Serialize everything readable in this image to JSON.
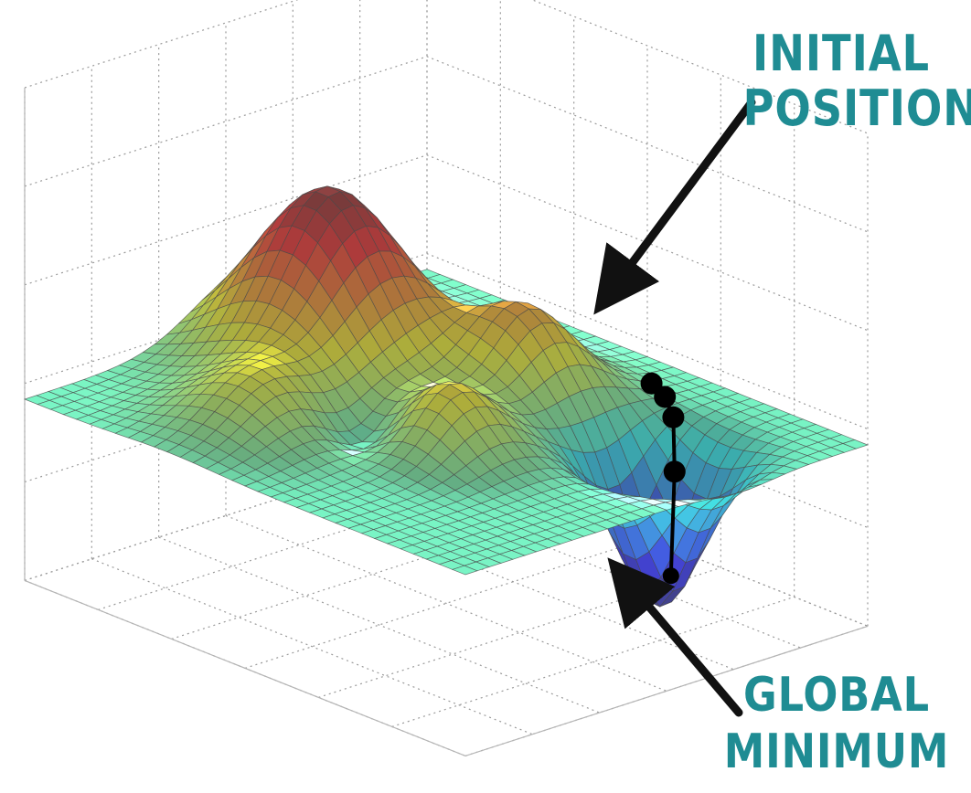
{
  "figure": {
    "background": "#ffffff",
    "surface_colormap": "jet (blue-cyan-green-yellow-red)",
    "surface": "3D mesh surface with peaks and a deep well",
    "trajectory_points": 5,
    "trajectory_color": "#000000",
    "annotation_color": "#1f8c93",
    "arrow_color": "#111111"
  },
  "annotations": {
    "initial_position": {
      "line1": "INITIAL",
      "line2": "POSITION"
    },
    "global_minimum": {
      "line1": "GLOBAL",
      "line2": "MINIMUM"
    }
  }
}
